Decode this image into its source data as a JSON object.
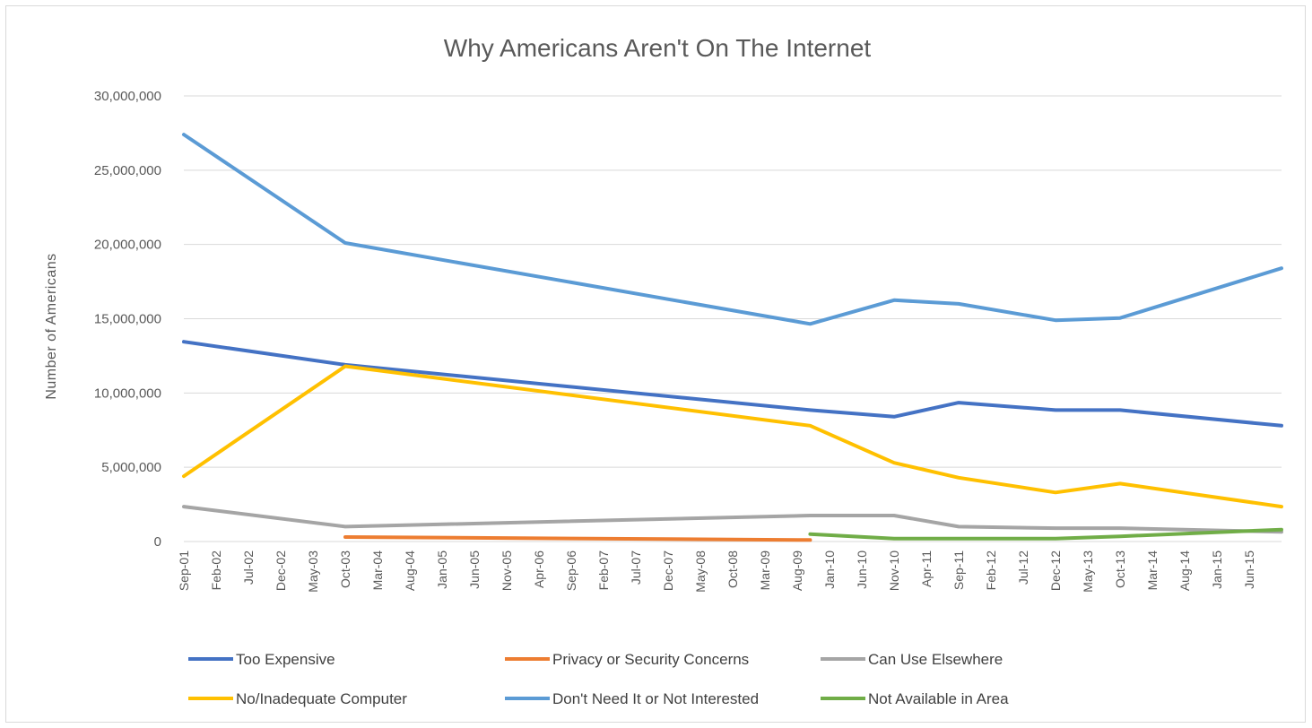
{
  "chart_data": {
    "type": "line",
    "title": "Why Americans Aren't On The Internet",
    "xlabel": "",
    "ylabel": "Number of Americans",
    "ylim": [
      0,
      30000000
    ],
    "yticks": [
      0,
      5000000,
      10000000,
      15000000,
      20000000,
      25000000,
      30000000
    ],
    "ytick_labels": [
      "0",
      "5,000,000",
      "10,000,000",
      "15,000,000",
      "20,000,000",
      "25,000,000",
      "30,000,000"
    ],
    "grid": "horizontal",
    "legend_position": "bottom",
    "categories": [
      "Sep-01",
      "Feb-02",
      "Jul-02",
      "Dec-02",
      "May-03",
      "Oct-03",
      "Mar-04",
      "Aug-04",
      "Jan-05",
      "Jun-05",
      "Nov-05",
      "Apr-06",
      "Sep-06",
      "Feb-07",
      "Jul-07",
      "Dec-07",
      "May-08",
      "Oct-08",
      "Mar-09",
      "Aug-09",
      "Jan-10",
      "Jun-10",
      "Nov-10",
      "Apr-11",
      "Sep-11",
      "Feb-12",
      "Jul-12",
      "Dec-12",
      "May-13",
      "Oct-13",
      "Mar-14",
      "Aug-14",
      "Jan-15",
      "Jun-15"
    ],
    "series": [
      {
        "name": "Too Expensive",
        "color": "#4472c4",
        "points": [
          [
            0,
            13450000
          ],
          [
            5,
            11900000
          ],
          [
            19.4,
            8850000
          ],
          [
            22,
            8400000
          ],
          [
            24,
            9350000
          ],
          [
            27,
            8850000
          ],
          [
            29,
            8850000
          ],
          [
            34,
            7800000
          ]
        ]
      },
      {
        "name": "Privacy or Security Concerns",
        "color": "#ed7d31",
        "points": [
          [
            5,
            300000
          ],
          [
            19.4,
            100000
          ]
        ]
      },
      {
        "name": "Can Use Elsewhere",
        "color": "#a5a5a5",
        "points": [
          [
            0,
            2350000
          ],
          [
            5,
            1000000
          ],
          [
            19.4,
            1750000
          ],
          [
            22,
            1750000
          ],
          [
            24,
            1000000
          ],
          [
            27,
            900000
          ],
          [
            29,
            900000
          ],
          [
            34,
            650000
          ]
        ]
      },
      {
        "name": "No/Inadequate Computer",
        "color": "#ffc000",
        "points": [
          [
            0,
            4400000
          ],
          [
            5,
            11800000
          ],
          [
            19.4,
            7800000
          ],
          [
            22,
            5300000
          ],
          [
            24,
            4300000
          ],
          [
            27,
            3300000
          ],
          [
            29,
            3900000
          ],
          [
            34,
            2350000
          ]
        ]
      },
      {
        "name": "Don't Need It or Not Interested",
        "color": "#5b9bd5",
        "points": [
          [
            0,
            27400000
          ],
          [
            5,
            20100000
          ],
          [
            19.4,
            14650000
          ],
          [
            22,
            16250000
          ],
          [
            24,
            16000000
          ],
          [
            27,
            14900000
          ],
          [
            29,
            15050000
          ],
          [
            34,
            18400000
          ]
        ]
      },
      {
        "name": "Not Available in Area",
        "color": "#70ad47",
        "points": [
          [
            19.4,
            500000
          ],
          [
            22,
            200000
          ],
          [
            24,
            200000
          ],
          [
            27,
            200000
          ],
          [
            29,
            350000
          ],
          [
            34,
            800000
          ]
        ]
      }
    ]
  }
}
